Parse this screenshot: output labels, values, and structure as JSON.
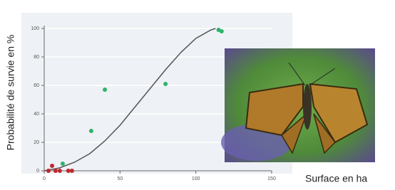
{
  "chart_data": {
    "type": "scatter",
    "y_label": "Probabilité de survie en %",
    "x_label": "Surface en ha",
    "xlim": [
      0,
      150
    ],
    "ylim": [
      0,
      100
    ],
    "xticks": [
      0,
      50,
      100,
      150
    ],
    "yticks": [
      0,
      20,
      40,
      60,
      80,
      100
    ],
    "grid": true,
    "series": [
      {
        "mode": "line",
        "color": "#555555",
        "x": [
          0,
          10,
          20,
          30,
          40,
          50,
          60,
          70,
          80,
          90,
          100,
          110,
          113
        ],
        "values": [
          0,
          2,
          6,
          12,
          21,
          32,
          45,
          58,
          71,
          83,
          93,
          99,
          100
        ]
      },
      {
        "mode": "markers",
        "color": "#c0282d",
        "x": [
          2.8,
          5.2,
          7.5,
          10.3,
          15.9,
          18.3
        ],
        "values": [
          0,
          3.5,
          0,
          0,
          0,
          0
        ]
      },
      {
        "mode": "markers",
        "color": "#2db36b",
        "x": [
          12.2,
          31,
          40,
          80,
          115,
          117
        ],
        "values": [
          5,
          28,
          57,
          61,
          99,
          98
        ]
      }
    ]
  }
}
